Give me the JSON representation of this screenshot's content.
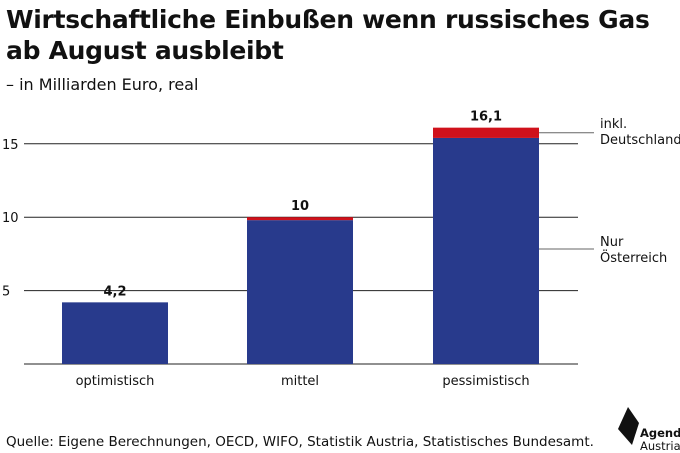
{
  "title": "Wirtschaftliche Einbußen wenn russisches Gas ab August ausbleibt",
  "subtitle": "– in Milliarden Euro, real",
  "source": "Quelle: Eigene Berechnungen, OECD, WIFO, Statistik Austria, Statistisches Bundesamt.",
  "logo": {
    "line1": "Agenda",
    "line2": "Austria"
  },
  "colors": {
    "oesterreich": "#283a8c",
    "deutschland": "#d0111b",
    "grid": "#222222"
  },
  "chart_data": {
    "type": "bar",
    "stacked": true,
    "categories": [
      "optimistisch",
      "mittel",
      "pessimistisch"
    ],
    "series": [
      {
        "name": "Nur Österreich",
        "values": [
          4.2,
          9.8,
          15.4
        ]
      },
      {
        "name": "inkl. Deutschland",
        "values": [
          0,
          0.2,
          0.7
        ]
      }
    ],
    "totals_labels": [
      "4,2",
      "10",
      "16,1"
    ],
    "totals": [
      4.2,
      10,
      16.1
    ],
    "y_ticks": [
      5,
      10,
      15
    ],
    "ylim": [
      0,
      16.1
    ],
    "grid": true,
    "legend_placement": "right"
  }
}
